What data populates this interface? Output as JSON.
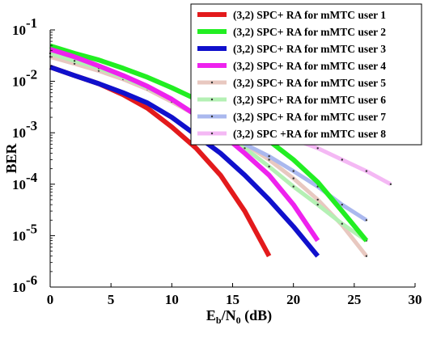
{
  "chart_data": {
    "type": "line",
    "ylabel": "BER",
    "xlabel": {
      "main": "E",
      "sub1": "b",
      "mid": "/N",
      "sub2": "0",
      "tail": " (dB)"
    },
    "xlim": [
      0,
      30
    ],
    "ylim": [
      1e-06,
      0.1
    ],
    "yscale": "log",
    "xticks": [
      0,
      5,
      10,
      15,
      20,
      25,
      30
    ],
    "yticks": [
      {
        "value": 1e-06,
        "base": "10",
        "exp": "-6"
      },
      {
        "value": 1e-05,
        "base": "10",
        "exp": "-5"
      },
      {
        "value": 0.0001,
        "base": "10",
        "exp": "-4"
      },
      {
        "value": 0.001,
        "base": "10",
        "exp": "-3"
      },
      {
        "value": 0.01,
        "base": "10",
        "exp": "-2"
      },
      {
        "value": 0.1,
        "base": "10",
        "exp": "-1"
      }
    ],
    "legend_position": "top-right",
    "series": [
      {
        "name": "(3,2) SPC+ RA  for  mMTC  user 1",
        "color": "#e31a1c",
        "style": "thick",
        "x": [
          0,
          2,
          4,
          6,
          8,
          10,
          12,
          14,
          16,
          18
        ],
        "y": [
          0.019,
          0.013,
          0.009,
          0.0055,
          0.003,
          0.0013,
          0.0005,
          0.00015,
          3e-05,
          4e-06
        ]
      },
      {
        "name": "(3,2) SPC+ RA  for  mMTC  user 2",
        "color": "#22ee22",
        "style": "thick",
        "x": [
          0,
          2,
          4,
          6,
          8,
          10,
          12,
          14,
          16,
          18,
          20,
          22,
          24,
          26
        ],
        "y": [
          0.049,
          0.035,
          0.026,
          0.018,
          0.012,
          0.0075,
          0.0045,
          0.0026,
          0.0014,
          0.0007,
          0.0003,
          0.00011,
          3e-05,
          8e-06
        ]
      },
      {
        "name": "(3,2) SPC+ RA for  mMTC  user 3",
        "color": "#1010cc",
        "style": "thick",
        "x": [
          0,
          2,
          4,
          6,
          8,
          10,
          12,
          14,
          16,
          18,
          20,
          22
        ],
        "y": [
          0.019,
          0.013,
          0.009,
          0.006,
          0.0038,
          0.002,
          0.0009,
          0.0004,
          0.00015,
          5e-05,
          1.5e-05,
          4e-06
        ]
      },
      {
        "name": "(3,2) SPC+ RA  for  mMTC  user 4",
        "color": "#ee22ee",
        "style": "thick",
        "x": [
          0,
          2,
          4,
          6,
          8,
          10,
          12,
          14,
          16,
          18,
          20,
          22
        ],
        "y": [
          0.042,
          0.03,
          0.02,
          0.013,
          0.008,
          0.0045,
          0.0022,
          0.001,
          0.0004,
          0.00015,
          4e-05,
          8e-06
        ]
      },
      {
        "name": "(3,2) SPC+ RA  for  mMTC  user 5",
        "color": "#e8c8c0",
        "style": "light",
        "x": [
          0,
          2,
          4,
          6,
          8,
          10,
          12,
          14,
          16,
          18,
          20,
          22,
          24,
          26
        ],
        "y": [
          0.03,
          0.022,
          0.016,
          0.011,
          0.007,
          0.004,
          0.0022,
          0.0011,
          0.0006,
          0.0003,
          0.00013,
          5e-05,
          1.6e-05,
          4e-06
        ]
      },
      {
        "name": "(3,2) SPC+ RA  for  mMTC  user 6",
        "color": "#b4f0b4",
        "style": "light",
        "x": [
          0,
          2,
          4,
          6,
          8,
          10,
          12,
          14,
          16,
          18,
          20,
          22,
          24,
          26
        ],
        "y": [
          0.035,
          0.025,
          0.018,
          0.012,
          0.0075,
          0.0045,
          0.0023,
          0.0011,
          0.0005,
          0.00022,
          9e-05,
          4e-05,
          1.7e-05,
          8e-06
        ]
      },
      {
        "name": "(3,2) SPC+ RA  for  mMTC  user 7",
        "color": "#aab8ee",
        "style": "light",
        "x": [
          14,
          16,
          18,
          20,
          22,
          24,
          26
        ],
        "y": [
          0.0011,
          0.0006,
          0.00035,
          0.00018,
          9e-05,
          4e-05,
          2e-05
        ]
      },
      {
        "name": "(3,2) SPC +RA  for  mMTC  user 8",
        "color": "#f4b8f4",
        "style": "light",
        "x": [
          14,
          16,
          18,
          20,
          22,
          24,
          26,
          28
        ],
        "y": [
          0.0025,
          0.0017,
          0.0011,
          0.00075,
          0.0005,
          0.0003,
          0.00018,
          0.0001
        ]
      }
    ]
  }
}
